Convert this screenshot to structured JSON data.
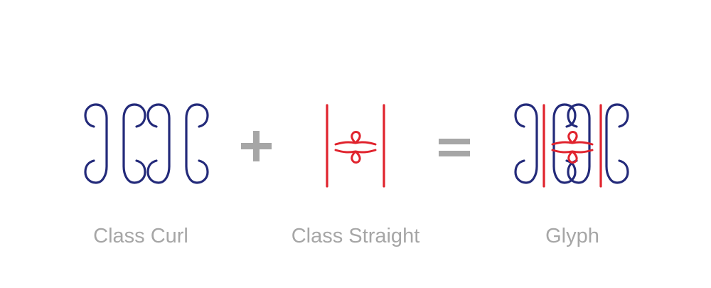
{
  "captions": {
    "curl": "Class Curl",
    "straight": "Class Straight",
    "glyph": "Glyph"
  },
  "operators": {
    "plus": "plus-sign",
    "equals": "equals-sign"
  },
  "colors": {
    "curl_stroke": "#232a7a",
    "straight_stroke": "#e0232d",
    "operator": "#a6a6a6",
    "caption": "#a6a6a6",
    "background": "#ffffff"
  }
}
